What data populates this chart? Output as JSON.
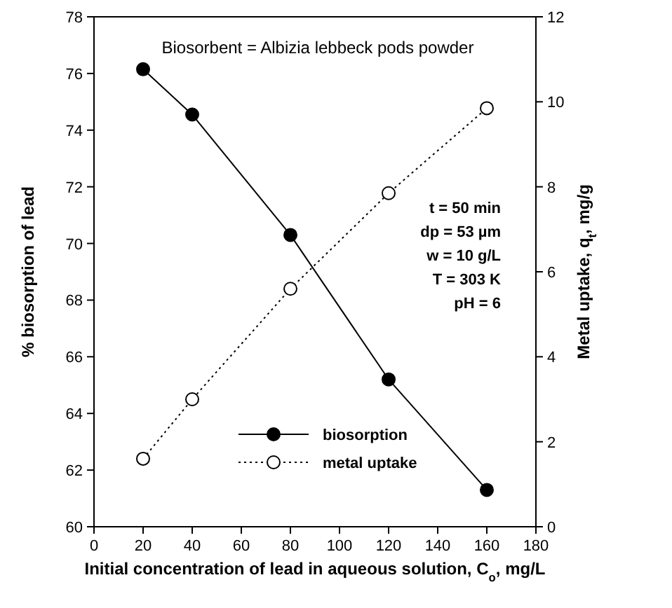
{
  "chart_data": {
    "type": "line",
    "xlabel": "Initial concentration of lead in aqueous solution, C$_{o}$, mg/L",
    "ylabel": "% biosorption of lead",
    "y2label": "Metal uptake, q$_{t}$, mg/g",
    "x": [
      20,
      40,
      80,
      120,
      160
    ],
    "series": [
      {
        "name": "biosorption",
        "color": "#000000",
        "values": [
          76.15,
          74.55,
          70.3,
          65.2,
          61.3
        ],
        "line_style": "solid",
        "marker": "circle"
      },
      {
        "name": "metal uptake",
        "color": "#000000",
        "values": [
          1.6,
          3.0,
          5.6,
          7.85,
          9.85
        ],
        "axis": "y2",
        "line_style": "dotted",
        "marker": "circle"
      }
    ],
    "xlim": [
      0,
      180
    ],
    "xticks": [
      0,
      20,
      40,
      60,
      80,
      100,
      120,
      140,
      160,
      180
    ],
    "ylim": [
      60,
      78
    ],
    "yticks": [
      60,
      62,
      64,
      66,
      68,
      70,
      72,
      74,
      76,
      78
    ],
    "y2lim": [
      0,
      12
    ],
    "y2ticks": [
      0,
      2,
      4,
      6,
      8,
      10,
      12
    ],
    "legend": "bottom",
    "annotations": [
      "Biosorbent = Albizia lebbeck pods powder",
      "t = 50 min",
      "dp = 53 µm",
      "w = 10 g/L",
      "T = 303 K",
      "pH = 6"
    ]
  }
}
